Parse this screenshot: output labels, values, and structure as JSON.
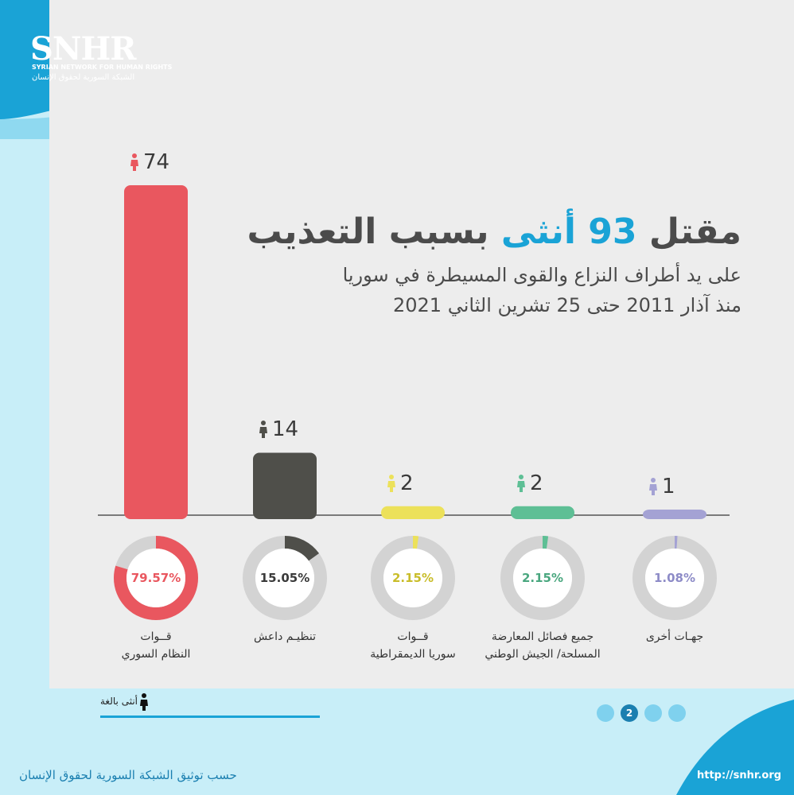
{
  "logo": {
    "main": "SNHR",
    "sub_en": "SYRIAN NETWORK FOR HUMAN RIGHTS",
    "sub_ar": "الشبكة السورية لحقوق الإنسان"
  },
  "heading": {
    "title_pre": "مقتل",
    "title_num": "93",
    "title_mid": "أنثى",
    "title_post": "بسبب التعذيب",
    "line2": "على يد أطراف النزاع والقوى المسيطرة في سوريا",
    "line3": "منذ آذار 2011 حتى 25 تشرين الثاني 2021"
  },
  "colors": {
    "accent": "#1aa3d6",
    "background": "#ededed"
  },
  "chart_data": {
    "type": "bar",
    "categories": [
      "قــوات النظام السوري",
      "تنظيـم داعش",
      "قــوات سوريا الديمقراطية",
      "جميع فصائل المعارضة المسلحة/ الجيش الوطني",
      "جهـات أخرى"
    ],
    "values": [
      74,
      14,
      2,
      2,
      1
    ],
    "percentages": [
      "79.57%",
      "15.05%",
      "2.15%",
      "2.15%",
      "1.08%"
    ],
    "percent_values": [
      79.57,
      15.05,
      2.15,
      2.15,
      1.08
    ],
    "colors": [
      "#e9575f",
      "#4f4f4a",
      "#ece15a",
      "#5ebf95",
      "#a4a2d4"
    ],
    "pct_text_colors": [
      "#e9575f",
      "#3a3a3a",
      "#c9bd2a",
      "#4aa77f",
      "#8d8bc7"
    ],
    "labels": {
      "c0": [
        "قــوات",
        "النظام السوري"
      ],
      "c1": [
        "تنظيـم داعش"
      ],
      "c2": [
        "قــوات",
        "سوريا الديمقراطية"
      ],
      "c3": [
        "جميع  فصائل المعارضة",
        "المسلحة/ الجيش الوطني"
      ],
      "c4": [
        "جهـات أخرى"
      ]
    },
    "ylim": [
      0,
      74
    ]
  },
  "legend": {
    "text": "أنثى بالغة",
    "icon": "female-adult-icon"
  },
  "pagination": {
    "current": "2",
    "count": 4
  },
  "footer": {
    "source": "حسب توثيق الشبكة السورية لحقوق الإنسان",
    "url": "http://snhr.org"
  }
}
